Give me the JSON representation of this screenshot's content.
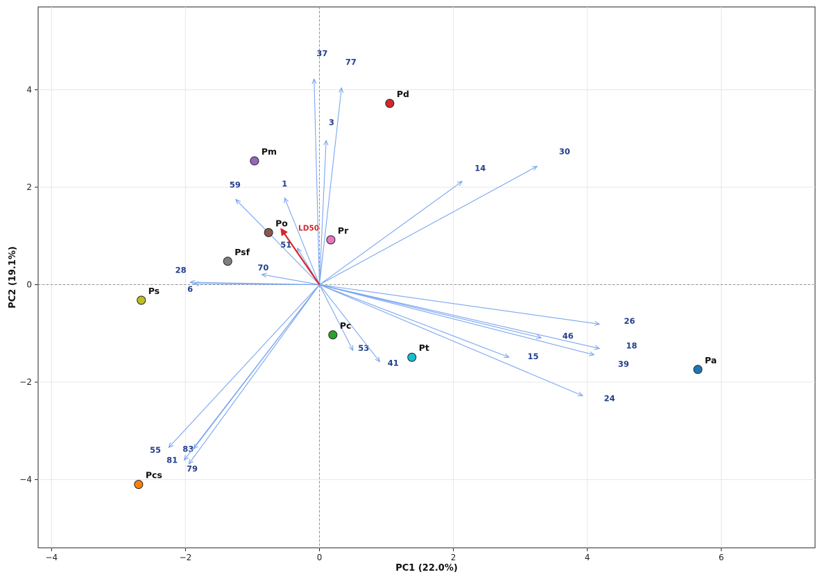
{
  "chart_data": {
    "type": "scatter",
    "title": "",
    "xlabel": "PC1 (22.0%)",
    "ylabel": "PC2 (19.1%)",
    "xlim": [
      -4.2,
      7.4
    ],
    "ylim": [
      -5.4,
      5.7
    ],
    "xticks": [
      -4,
      -2,
      0,
      2,
      4,
      6
    ],
    "yticks": [
      -4,
      -2,
      0,
      2,
      4
    ],
    "xtick_labels": [
      "−4",
      "−2",
      "0",
      "2",
      "4",
      "6"
    ],
    "ytick_labels": [
      "−4",
      "−2",
      "0",
      "2",
      "4"
    ],
    "grid": true,
    "colors": {
      "loading_arrow": "#7aa6f0",
      "loading_label": "#23408e",
      "ld50": "#d62728",
      "marker_edge": "#222222",
      "axis_line": "#888888"
    },
    "points": [
      {
        "label": "Pd",
        "x": 1.05,
        "y": 3.72,
        "color": "#d62728"
      },
      {
        "label": "Pm",
        "x": -0.97,
        "y": 2.54,
        "color": "#9467bd"
      },
      {
        "label": "Po",
        "x": -0.76,
        "y": 1.07,
        "color": "#8c564b"
      },
      {
        "label": "Pr",
        "x": 0.17,
        "y": 0.92,
        "color": "#e377c2"
      },
      {
        "label": "Psf",
        "x": -1.37,
        "y": 0.48,
        "color": "#7f7f7f"
      },
      {
        "label": "Ps",
        "x": -2.66,
        "y": -0.32,
        "color": "#bcbd22"
      },
      {
        "label": "Pc",
        "x": 0.2,
        "y": -1.03,
        "color": "#2ca02c"
      },
      {
        "label": "Pt",
        "x": 1.38,
        "y": -1.49,
        "color": "#17becf"
      },
      {
        "label": "Pa",
        "x": 5.65,
        "y": -1.74,
        "color": "#1f77b4"
      },
      {
        "label": "Pcs",
        "x": -2.7,
        "y": -4.1,
        "color": "#ff7f0e"
      }
    ],
    "loadings": [
      {
        "label": "37",
        "x": -0.08,
        "y": 4.22,
        "lx": 0.04,
        "ly": 4.75
      },
      {
        "label": "77",
        "x": 0.33,
        "y": 4.04,
        "lx": 0.47,
        "ly": 4.57
      },
      {
        "label": "3",
        "x": 0.1,
        "y": 2.96,
        "lx": 0.18,
        "ly": 3.33
      },
      {
        "label": "30",
        "x": 3.25,
        "y": 2.43,
        "lx": 3.66,
        "ly": 2.73
      },
      {
        "label": "14",
        "x": 2.13,
        "y": 2.12,
        "lx": 2.4,
        "ly": 2.39
      },
      {
        "label": "59",
        "x": -1.25,
        "y": 1.75,
        "lx": -1.26,
        "ly": 2.05
      },
      {
        "label": "1",
        "x": -0.52,
        "y": 1.78,
        "lx": -0.52,
        "ly": 2.07
      },
      {
        "label": "51",
        "x": -0.33,
        "y": 0.75,
        "lx": -0.5,
        "ly": 0.82
      },
      {
        "label": "70",
        "x": -0.86,
        "y": 0.21,
        "lx": -0.84,
        "ly": 0.35
      },
      {
        "label": "28",
        "x": -1.93,
        "y": 0.05,
        "lx": -2.07,
        "ly": 0.3
      },
      {
        "label": "6",
        "x": -1.87,
        "y": 0.02,
        "lx": -1.93,
        "ly": -0.09
      },
      {
        "label": "26",
        "x": 4.18,
        "y": -0.81,
        "lx": 4.63,
        "ly": -0.75
      },
      {
        "label": "46",
        "x": 3.31,
        "y": -1.09,
        "lx": 3.71,
        "ly": -1.05
      },
      {
        "label": "18",
        "x": 4.18,
        "y": -1.31,
        "lx": 4.66,
        "ly": -1.25
      },
      {
        "label": "39",
        "x": 4.1,
        "y": -1.44,
        "lx": 4.54,
        "ly": -1.63
      },
      {
        "label": "15",
        "x": 2.83,
        "y": -1.49,
        "lx": 3.19,
        "ly": -1.47
      },
      {
        "label": "24",
        "x": 3.93,
        "y": -2.28,
        "lx": 4.33,
        "ly": -2.33
      },
      {
        "label": "53",
        "x": 0.5,
        "y": -1.35,
        "lx": 0.66,
        "ly": -1.3
      },
      {
        "label": "41",
        "x": 0.9,
        "y": -1.58,
        "lx": 1.1,
        "ly": -1.61
      },
      {
        "label": "55",
        "x": -2.25,
        "y": -3.34,
        "lx": -2.45,
        "ly": -3.39
      },
      {
        "label": "83",
        "x": -1.88,
        "y": -3.37,
        "lx": -1.96,
        "ly": -3.37
      },
      {
        "label": "81",
        "x": -2.02,
        "y": -3.6,
        "lx": -2.2,
        "ly": -3.6
      },
      {
        "label": "79",
        "x": -1.95,
        "y": -3.68,
        "lx": -1.9,
        "ly": -3.78
      }
    ],
    "ld50": {
      "label": "LD50",
      "x": -0.57,
      "y": 1.14,
      "lx": -0.16,
      "ly": 1.17
    }
  }
}
